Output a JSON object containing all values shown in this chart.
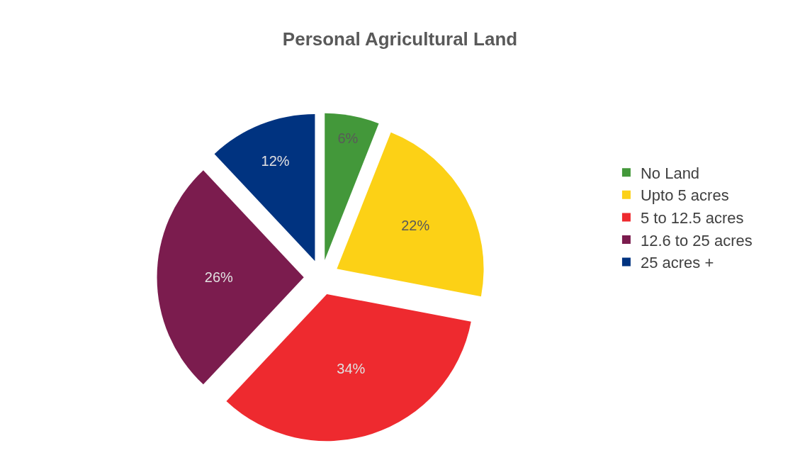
{
  "chart_data": {
    "type": "pie",
    "title": "Personal Agricultural Land",
    "categories": [
      "No Land",
      "Upto 5 acres",
      "5 to 12.5 acres",
      "12.6 to 25 acres",
      "25 acres +"
    ],
    "values": [
      6,
      22,
      34,
      26,
      12
    ],
    "colors": [
      "#43983a",
      "#fcd116",
      "#ee2a2f",
      "#7b1c4e",
      "#003380"
    ],
    "value_labels": [
      "6%",
      "22%",
      "34%",
      "26%",
      "12%"
    ],
    "legend": "right"
  }
}
